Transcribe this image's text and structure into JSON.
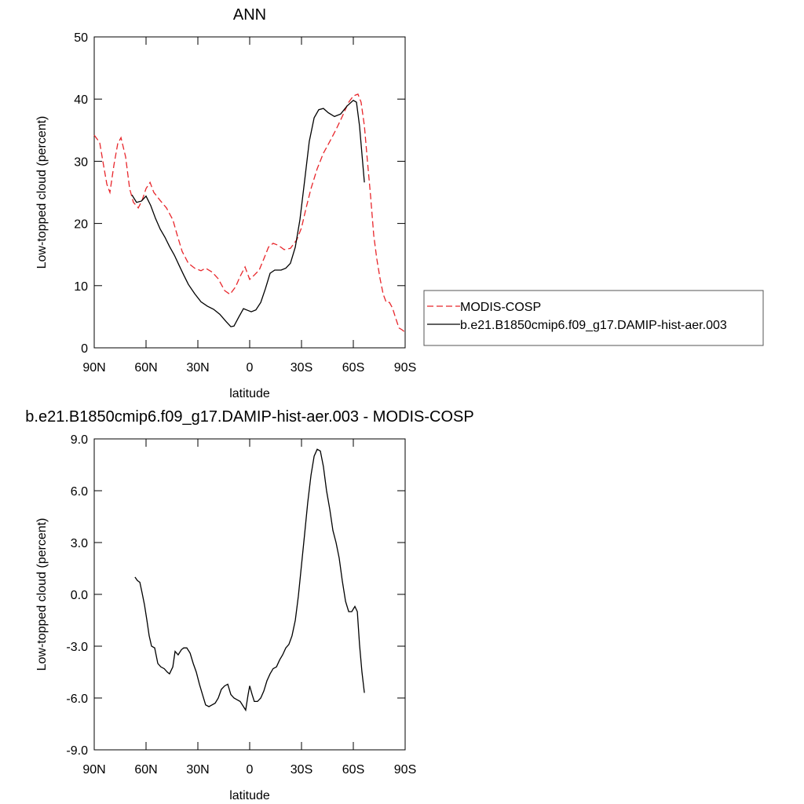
{
  "chart_data": [
    {
      "type": "line",
      "title": "ANN",
      "xlabel": "latitude",
      "ylabel": "Low-topped cloud (percent)",
      "xlim": [
        90,
        -90
      ],
      "ylim": [
        0,
        50
      ],
      "xticks": [
        {
          "value": 90,
          "label": "90N"
        },
        {
          "value": 60,
          "label": "60N"
        },
        {
          "value": 30,
          "label": "30N"
        },
        0,
        {
          "value": -30,
          "label": "30S"
        },
        {
          "value": -60,
          "label": "60S"
        },
        {
          "value": -90,
          "label": "90S"
        }
      ],
      "yticks": [
        0,
        10,
        20,
        30,
        40,
        50
      ],
      "legend": "outside-right",
      "series": [
        {
          "name": "MODIS-COSP",
          "color": "#e8262b",
          "line_style": "dashed",
          "x": [
            90,
            86.8,
            85,
            82.7,
            80.9,
            78.6,
            76.4,
            74.5,
            71.8,
            69.5,
            67.3,
            64.5,
            62.3,
            60,
            57.7,
            55.5,
            51.8,
            48.2,
            44.5,
            41.8,
            39.1,
            35.5,
            31.8,
            28.2,
            25.5,
            21.8,
            18.2,
            14.5,
            11.4,
            8.2,
            5.5,
            2.7,
            0,
            -2.7,
            -5.5,
            -8.2,
            -10.9,
            -13.6,
            -16.4,
            -20,
            -23.6,
            -27.3,
            -30,
            -32.7,
            -35.5,
            -39.1,
            -42.7,
            -46.4,
            -50,
            -53.6,
            -57.3,
            -60,
            -62.7,
            -64.5,
            -66.4,
            -68.2,
            -70,
            -71.8,
            -73.6,
            -75.5,
            -77.3,
            -79.1,
            -80.9,
            -82.7,
            -84.5,
            -86.4,
            -88.2,
            -90
          ],
          "values": [
            34.2,
            33,
            30,
            26.3,
            25,
            29.4,
            32.8,
            33.8,
            30.7,
            25.6,
            23.4,
            22.5,
            23.7,
            25.6,
            26.6,
            25,
            23.7,
            22.5,
            20.6,
            18,
            15.5,
            13.6,
            12.8,
            12.4,
            12.8,
            12.2,
            11.1,
            9.2,
            8.6,
            9.8,
            11.5,
            13,
            11,
            11.7,
            12.5,
            14.3,
            16.2,
            16.8,
            16.5,
            15.8,
            16,
            17.4,
            19.3,
            22.5,
            25.6,
            28.8,
            31.3,
            33.2,
            35.1,
            37.2,
            39.5,
            40.5,
            40.8,
            39.5,
            35.7,
            30,
            24.4,
            18.1,
            14.3,
            11.1,
            8.6,
            7.3,
            7.3,
            6.4,
            4.8,
            3.2,
            2.9,
            2.5
          ]
        },
        {
          "name": "b.e21.B1850cmip6.f09_g17.DAMIP-hist-aer.003",
          "color": "#000000",
          "line_style": "solid",
          "x": [
            68.2,
            65.5,
            62.7,
            60,
            57.3,
            54.5,
            51.8,
            49.1,
            46.4,
            43.6,
            40.9,
            38.2,
            35.5,
            31.8,
            28.2,
            24.5,
            20.9,
            17.3,
            13.6,
            10.9,
            9.1,
            6.4,
            3.6,
            1.8,
            -0.9,
            -3.6,
            -6.4,
            -9.1,
            -11.8,
            -14.5,
            -18.2,
            -20.9,
            -23.6,
            -26.4,
            -29.1,
            -31.8,
            -34.5,
            -37.3,
            -40,
            -42.7,
            -45.5,
            -49.1,
            -52.7,
            -56.4,
            -60,
            -61.8,
            -63.6,
            -66.4
          ],
          "values": [
            24.6,
            23.4,
            23.6,
            24.4,
            22.9,
            20.8,
            19.1,
            17.8,
            16.3,
            14.9,
            13.3,
            11.7,
            10.2,
            8.7,
            7.4,
            6.7,
            6.2,
            5.4,
            4.2,
            3.4,
            3.5,
            4.9,
            6.3,
            6.1,
            5.8,
            6.1,
            7.3,
            9.5,
            12,
            12.5,
            12.5,
            12.8,
            13.6,
            16.2,
            20.6,
            26.9,
            33.2,
            37,
            38.3,
            38.5,
            37.8,
            37.2,
            37.6,
            38.9,
            39.8,
            39.5,
            35.7,
            26.6
          ]
        }
      ]
    },
    {
      "type": "line",
      "title": "b.e21.B1850cmip6.f09_g17.DAMIP-hist-aer.003 - MODIS-COSP",
      "xlabel": "latitude",
      "ylabel": "Low-topped cloud (percent)",
      "xlim": [
        90,
        -90
      ],
      "ylim": [
        -9,
        9
      ],
      "xticks": [
        {
          "value": 90,
          "label": "90N"
        },
        {
          "value": 60,
          "label": "60N"
        },
        {
          "value": 30,
          "label": "30N"
        },
        0,
        {
          "value": -30,
          "label": "30S"
        },
        {
          "value": -60,
          "label": "60S"
        },
        {
          "value": -90,
          "label": "90S"
        }
      ],
      "yticks": [
        {
          "value": -9,
          "label": "-9.0"
        },
        {
          "value": -6,
          "label": "-6.0"
        },
        {
          "value": -3,
          "label": "-3.0"
        },
        {
          "value": 0,
          "label": "0.0"
        },
        {
          "value": 3,
          "label": "3.0"
        },
        {
          "value": 6,
          "label": "6.0"
        },
        {
          "value": 9,
          "label": "9.0"
        }
      ],
      "series": [
        {
          "color": "#000000",
          "line_style": "solid",
          "x": [
            66.4,
            65,
            63.6,
            62.3,
            60.9,
            59.5,
            58.2,
            56.8,
            55,
            53.2,
            51.4,
            49.5,
            47.7,
            46.4,
            44.5,
            43.2,
            41.4,
            39.5,
            38.2,
            36.4,
            34.5,
            32.7,
            30.9,
            29.1,
            27.3,
            25.5,
            23.6,
            21.8,
            20,
            18.2,
            16.4,
            14.5,
            12.7,
            10.9,
            9.1,
            7.3,
            5.5,
            3.6,
            2.3,
            0.9,
            0,
            -1.4,
            -2.7,
            -4.5,
            -6.4,
            -8.2,
            -10,
            -11.8,
            -13.6,
            -15.5,
            -17.3,
            -19.1,
            -20.9,
            -22.7,
            -24.5,
            -26.4,
            -28.2,
            -30,
            -31.8,
            -33.6,
            -35.5,
            -37.3,
            -39.1,
            -40.9,
            -42.7,
            -44.5,
            -46.4,
            -48.2,
            -50,
            -51.8,
            -53.6,
            -55.5,
            -57.3,
            -59.1,
            -60.9,
            -62.3,
            -63.6,
            -65,
            -66.4
          ],
          "values": [
            1.0,
            0.8,
            0.7,
            0.1,
            -0.6,
            -1.5,
            -2.4,
            -3.0,
            -3.1,
            -4.0,
            -4.2,
            -4.3,
            -4.5,
            -4.6,
            -4.2,
            -3.3,
            -3.5,
            -3.2,
            -3.1,
            -3.1,
            -3.4,
            -4.0,
            -4.5,
            -5.2,
            -5.8,
            -6.4,
            -6.5,
            -6.4,
            -6.3,
            -6.0,
            -5.5,
            -5.3,
            -5.2,
            -5.8,
            -6.0,
            -6.1,
            -6.2,
            -6.5,
            -6.7,
            -5.8,
            -5.3,
            -5.8,
            -6.2,
            -6.2,
            -6.0,
            -5.6,
            -5.0,
            -4.6,
            -4.3,
            -4.2,
            -3.8,
            -3.5,
            -3.1,
            -2.9,
            -2.4,
            -1.5,
            -0.1,
            1.7,
            3.5,
            5.3,
            6.9,
            8.0,
            8.4,
            8.3,
            7.4,
            6.0,
            4.9,
            3.7,
            3.0,
            2.1,
            0.8,
            -0.4,
            -1.0,
            -1.0,
            -0.7,
            -1.0,
            -2.9,
            -4.5,
            -5.7
          ]
        }
      ]
    }
  ]
}
